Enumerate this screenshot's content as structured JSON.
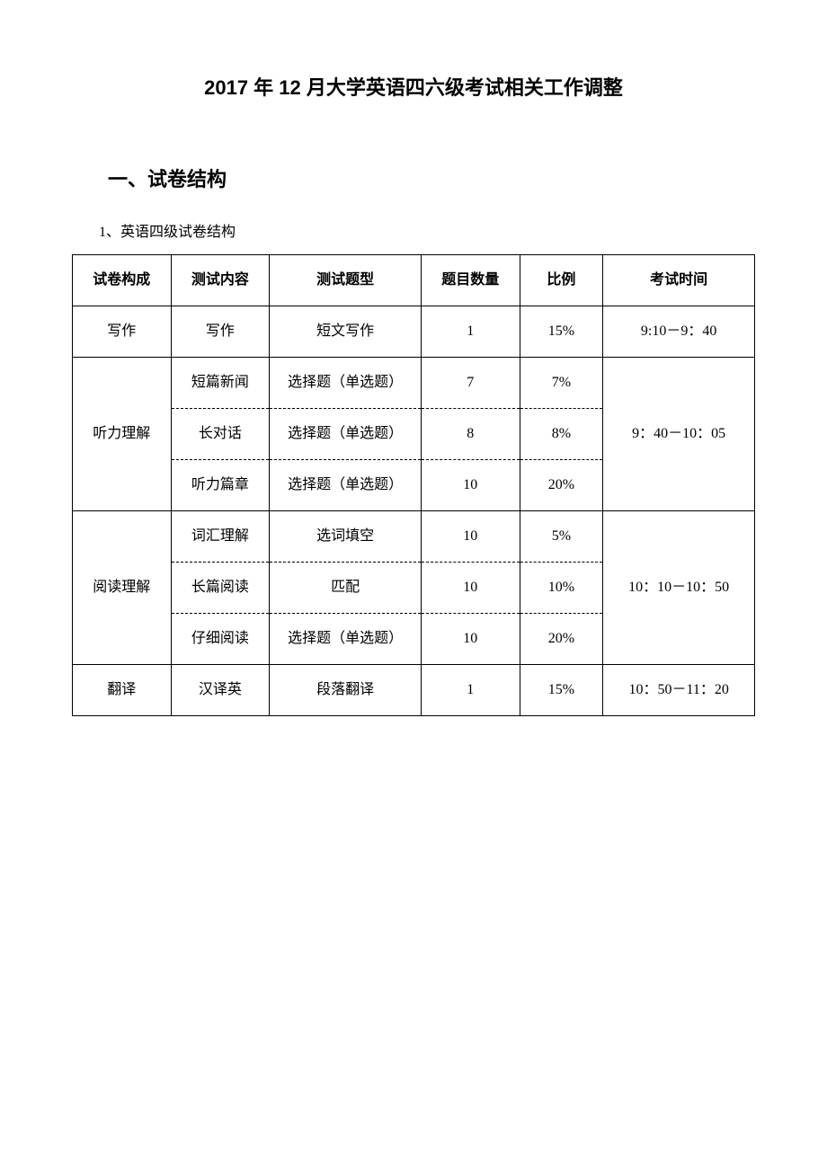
{
  "page_title": "2017 年 12 月大学英语四六级考试相关工作调整",
  "section_heading": "一、试卷结构",
  "sub_heading": "1、英语四级试卷结构",
  "table": {
    "headers": {
      "col1": "试卷构成",
      "col2": "测试内容",
      "col3": "测试题型",
      "col4": "题目数量",
      "col5": "比例",
      "col6": "考试时间"
    },
    "rows": [
      {
        "section": "写作",
        "content": "写作",
        "type": "短文写作",
        "count": "1",
        "ratio": "15%",
        "time": "9:10－9：40",
        "section_rowspan": 1,
        "time_rowspan": 1
      },
      {
        "section": "听力理解",
        "content": "短篇新闻",
        "type": "选择题（单选题）",
        "count": "7",
        "ratio": "7%",
        "time": "9：40－10：05",
        "section_rowspan": 3,
        "time_rowspan": 3
      },
      {
        "content": "长对话",
        "type": "选择题（单选题）",
        "count": "8",
        "ratio": "8%"
      },
      {
        "content": "听力篇章",
        "type": "选择题（单选题）",
        "count": "10",
        "ratio": "20%"
      },
      {
        "section": "阅读理解",
        "content": "词汇理解",
        "type": "选词填空",
        "count": "10",
        "ratio": "5%",
        "time": "10：10－10：50",
        "section_rowspan": 3,
        "time_rowspan": 3
      },
      {
        "content": "长篇阅读",
        "type": "匹配",
        "count": "10",
        "ratio": "10%"
      },
      {
        "content": "仔细阅读",
        "type": "选择题（单选题）",
        "count": "10",
        "ratio": "20%"
      },
      {
        "section": "翻译",
        "content": "汉译英",
        "type": "段落翻译",
        "count": "1",
        "ratio": "15%",
        "time": "10：50－11：20",
        "section_rowspan": 1,
        "time_rowspan": 1
      }
    ]
  },
  "styles": {
    "background_color": "#ffffff",
    "text_color": "#000000",
    "border_color": "#000000",
    "title_fontsize": 22,
    "body_fontsize": 16,
    "font_family_heading": "SimHei",
    "font_family_body": "SimSun"
  }
}
